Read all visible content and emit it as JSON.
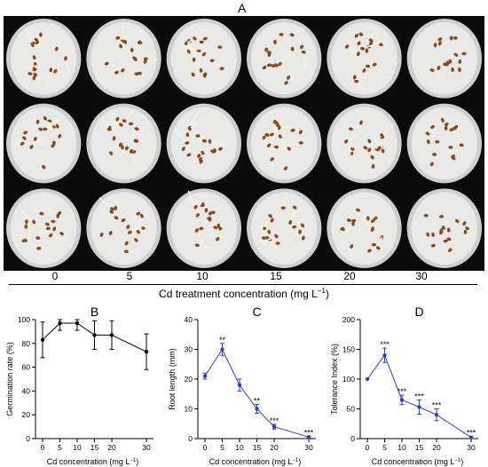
{
  "panel_a": {
    "letter": "A",
    "concentrations": [
      "0",
      "5",
      "10",
      "15",
      "20",
      "30"
    ],
    "axis_label": "Cd treatment concentration (mg L",
    "axis_label_sup": "−1",
    "axis_label_end": ")"
  },
  "chart_data": [
    {
      "type": "line",
      "panel": "B",
      "title": "",
      "xlabel": "Cd concentration (mg L",
      "xlabel_sup": "−1",
      "xlabel_end": ")",
      "ylabel": "Germination rate (%)",
      "x": [
        0,
        5,
        10,
        15,
        20,
        30
      ],
      "x_ticks": [
        "0",
        "5",
        "10",
        "15",
        "20",
        "30"
      ],
      "y": [
        83,
        97,
        97,
        87,
        87,
        73
      ],
      "err": [
        15,
        6,
        6,
        12,
        12,
        15
      ],
      "ylim": [
        0,
        100
      ],
      "y_ticks": [
        0,
        20,
        40,
        60,
        80,
        100
      ],
      "significance": [
        "",
        "",
        "",
        "",
        "",
        ""
      ],
      "color": "#000000",
      "grid": false
    },
    {
      "type": "line",
      "panel": "C",
      "title": "",
      "xlabel": "Cd concentration (mg L",
      "xlabel_sup": "−1",
      "xlabel_end": ")",
      "ylabel": "Root length (mm)",
      "x": [
        0,
        5,
        10,
        15,
        20,
        30
      ],
      "x_ticks": [
        "0",
        "5",
        "10",
        "15",
        "20",
        "30"
      ],
      "y": [
        21,
        30,
        18,
        10,
        4,
        0.5
      ],
      "err": [
        1,
        2,
        2,
        1.5,
        0.8,
        0.3
      ],
      "ylim": [
        0,
        40
      ],
      "y_ticks": [
        0,
        10,
        20,
        30,
        40
      ],
      "significance": [
        "",
        "**",
        "",
        "**",
        "***",
        "***"
      ],
      "color": "#2b3fce",
      "grid": false
    },
    {
      "type": "line",
      "panel": "D",
      "title": "",
      "xlabel": "Cd concentration (mg L",
      "xlabel_sup": "−1",
      "xlabel_end": ")",
      "ylabel": "Tolerance Index (%)",
      "x": [
        0,
        5,
        10,
        15,
        20,
        30
      ],
      "x_ticks": [
        "0",
        "5",
        "10",
        "15",
        "20",
        "30"
      ],
      "y": [
        100,
        140,
        65,
        53,
        40,
        2
      ],
      "err": [
        0,
        12,
        8,
        12,
        10,
        2
      ],
      "ylim": [
        0,
        200
      ],
      "y_ticks": [
        0,
        50,
        100,
        150,
        200
      ],
      "significance": [
        "",
        "***",
        "***",
        "***",
        "***",
        "***"
      ],
      "color": "#2b3fce",
      "grid": false
    }
  ]
}
